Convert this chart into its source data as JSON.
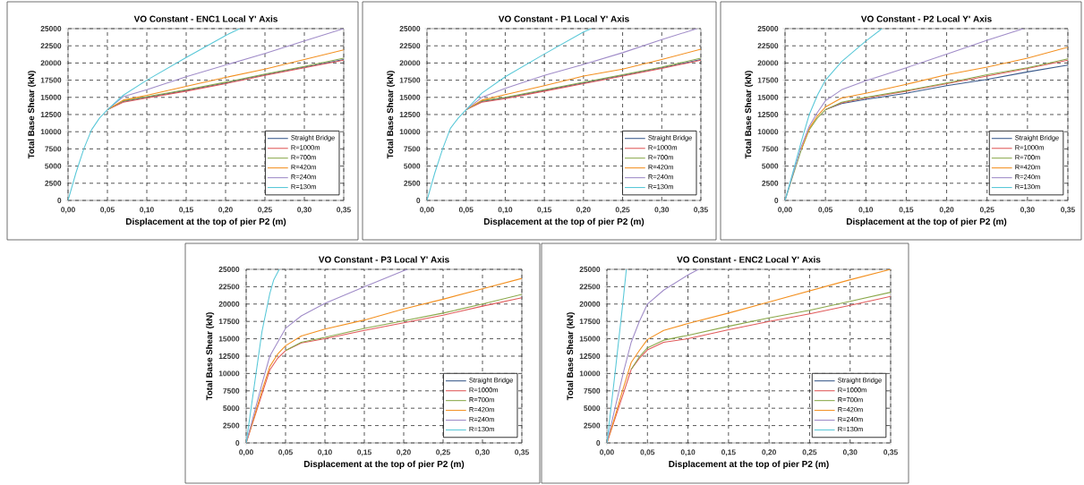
{
  "chart_data": [
    {
      "type": "line",
      "title": "VO Constant - ENC1 Local Y' Axis",
      "xlabel": "Displacement at the top of pier P2 (m)",
      "ylabel": "Total Base Shear (kN)",
      "xlim": [
        0,
        0.35
      ],
      "ylim": [
        0,
        25000
      ],
      "xticks": [
        {
          "value": 0,
          "label": "0,00"
        },
        {
          "value": 0.05,
          "label": "0,05"
        },
        {
          "value": 0.1,
          "label": "0,10"
        },
        {
          "value": 0.15,
          "label": "0,15"
        },
        {
          "value": 0.2,
          "label": "0,20"
        },
        {
          "value": 0.25,
          "label": "0,25"
        },
        {
          "value": 0.3,
          "label": "0,30"
        },
        {
          "value": 0.35,
          "label": "0,35"
        }
      ],
      "yticks": [
        0,
        2500,
        5000,
        7500,
        10000,
        12500,
        15000,
        17500,
        20000,
        22500,
        25000
      ],
      "grid": true,
      "legend": "bottom right",
      "series": [
        {
          "name": "Straight Bridge",
          "color": "#3a5a8c",
          "x": [
            0.05,
            0.07,
            0.1,
            0.15,
            0.2,
            0.25,
            0.3,
            0.35
          ],
          "values": [
            13200,
            14400,
            15000,
            16000,
            17100,
            18300,
            19400,
            20500
          ]
        },
        {
          "name": "R=1000m",
          "color": "#e05a5a",
          "x": [
            0.05,
            0.07,
            0.1,
            0.15,
            0.2,
            0.25,
            0.3,
            0.35
          ],
          "values": [
            13200,
            14300,
            14900,
            15900,
            17000,
            18200,
            19300,
            20400
          ]
        },
        {
          "name": "R=700m",
          "color": "#8aa84a",
          "x": [
            0.05,
            0.07,
            0.1,
            0.15,
            0.2,
            0.25,
            0.3,
            0.35
          ],
          "values": [
            13200,
            14500,
            15100,
            16100,
            17200,
            18400,
            19500,
            20700
          ]
        },
        {
          "name": "R=420m",
          "color": "#f39020",
          "x": [
            0.05,
            0.07,
            0.1,
            0.15,
            0.2,
            0.25,
            0.3,
            0.35
          ],
          "values": [
            13200,
            14600,
            15300,
            16600,
            17900,
            19100,
            20500,
            21900
          ]
        },
        {
          "name": "R=240m",
          "color": "#a08cc8",
          "x": [
            0.05,
            0.07,
            0.1,
            0.15,
            0.2,
            0.25,
            0.3,
            0.35
          ],
          "values": [
            13200,
            15100,
            16100,
            18000,
            19700,
            21400,
            23200,
            25000
          ]
        },
        {
          "name": "R=130m",
          "color": "#5ac8d8",
          "x": [
            0,
            0.01,
            0.02,
            0.03,
            0.04,
            0.05,
            0.07,
            0.1,
            0.15,
            0.2,
            0.218
          ],
          "values": [
            0,
            4000,
            7500,
            10300,
            12000,
            13200,
            15300,
            17500,
            20800,
            24000,
            25000
          ]
        }
      ]
    },
    {
      "type": "line",
      "title": "VO Constant - P1 Local Y' Axis",
      "xlabel": "Displacement at the top of pier P2 (m)",
      "ylabel": "Total Base Shear (kN)",
      "xlim": [
        0,
        0.35
      ],
      "ylim": [
        0,
        25000
      ],
      "xticks": [
        {
          "value": 0,
          "label": "0,00"
        },
        {
          "value": 0.05,
          "label": "0,05"
        },
        {
          "value": 0.1,
          "label": "0,10"
        },
        {
          "value": 0.15,
          "label": "0,15"
        },
        {
          "value": 0.2,
          "label": "0,20"
        },
        {
          "value": 0.25,
          "label": "0,25"
        },
        {
          "value": 0.3,
          "label": "0,30"
        },
        {
          "value": 0.35,
          "label": "0,35"
        }
      ],
      "yticks": [
        0,
        2500,
        5000,
        7500,
        10000,
        12500,
        15000,
        17500,
        20000,
        22500,
        25000
      ],
      "grid": true,
      "legend": "bottom right",
      "series": [
        {
          "name": "Straight Bridge",
          "color": "#3a5a8c",
          "x": [
            0.05,
            0.07,
            0.1,
            0.15,
            0.2,
            0.25,
            0.3,
            0.35
          ],
          "values": [
            13200,
            14400,
            14900,
            16000,
            17100,
            18200,
            19300,
            20500
          ]
        },
        {
          "name": "R=1000m",
          "color": "#e05a5a",
          "x": [
            0.05,
            0.07,
            0.1,
            0.15,
            0.2,
            0.25,
            0.3,
            0.35
          ],
          "values": [
            13200,
            14300,
            14800,
            15900,
            17000,
            18100,
            19200,
            20400
          ]
        },
        {
          "name": "R=700m",
          "color": "#8aa84a",
          "x": [
            0.05,
            0.07,
            0.1,
            0.15,
            0.2,
            0.25,
            0.3,
            0.35
          ],
          "values": [
            13200,
            14500,
            15000,
            16100,
            17200,
            18300,
            19400,
            20700
          ]
        },
        {
          "name": "R=420m",
          "color": "#f39020",
          "x": [
            0.05,
            0.07,
            0.1,
            0.15,
            0.2,
            0.25,
            0.3,
            0.35
          ],
          "values": [
            13200,
            14600,
            15400,
            16700,
            18100,
            19100,
            20500,
            22000
          ]
        },
        {
          "name": "R=240m",
          "color": "#a08cc8",
          "x": [
            0.05,
            0.07,
            0.1,
            0.15,
            0.2,
            0.25,
            0.3,
            0.345
          ],
          "values": [
            13200,
            15000,
            16300,
            18200,
            19800,
            21500,
            23400,
            25000
          ]
        },
        {
          "name": "R=130m",
          "color": "#5ac8d8",
          "x": [
            0,
            0.01,
            0.02,
            0.03,
            0.04,
            0.05,
            0.07,
            0.1,
            0.15,
            0.2,
            0.21
          ],
          "values": [
            0,
            4000,
            7500,
            10500,
            12000,
            13200,
            15600,
            18000,
            21300,
            24500,
            25000
          ]
        }
      ]
    },
    {
      "type": "line",
      "title": "VO Constant - P2 Local Y' Axis",
      "xlabel": "Displacement at the top of pier P2 (m)",
      "ylabel": "Total Base Shear (kN)",
      "xlim": [
        0,
        0.35
      ],
      "ylim": [
        0,
        25000
      ],
      "xticks": [
        {
          "value": 0,
          "label": "0,00"
        },
        {
          "value": 0.05,
          "label": "0,05"
        },
        {
          "value": 0.1,
          "label": "0,10"
        },
        {
          "value": 0.15,
          "label": "0,15"
        },
        {
          "value": 0.2,
          "label": "0,20"
        },
        {
          "value": 0.25,
          "label": "0,25"
        },
        {
          "value": 0.3,
          "label": "0,30"
        },
        {
          "value": 0.35,
          "label": "0,35"
        }
      ],
      "yticks": [
        0,
        2500,
        5000,
        7500,
        10000,
        12500,
        15000,
        17500,
        20000,
        22500,
        25000
      ],
      "grid": true,
      "legend": "bottom right",
      "series": [
        {
          "name": "Straight Bridge",
          "color": "#3a5a8c",
          "x": [
            0.05,
            0.07,
            0.1,
            0.15,
            0.2,
            0.25,
            0.3,
            0.35
          ],
          "values": [
            13200,
            14100,
            14700,
            15600,
            16700,
            17600,
            18700,
            19700
          ]
        },
        {
          "name": "R=1000m",
          "color": "#e05a5a",
          "x": [
            0.05,
            0.07,
            0.1,
            0.15,
            0.2,
            0.25,
            0.3,
            0.35
          ],
          "values": [
            13200,
            14200,
            14900,
            15900,
            17000,
            18100,
            19200,
            20400
          ]
        },
        {
          "name": "R=700m",
          "color": "#8aa84a",
          "x": [
            0,
            0.01,
            0.02,
            0.03,
            0.04,
            0.05,
            0.07,
            0.1,
            0.15,
            0.2,
            0.25,
            0.3,
            0.35
          ],
          "values": [
            0,
            3700,
            7300,
            10300,
            12000,
            13200,
            14300,
            15000,
            16000,
            17100,
            18300,
            19300,
            20600
          ]
        },
        {
          "name": "R=420m",
          "color": "#f39020",
          "x": [
            0.02,
            0.03,
            0.04,
            0.05,
            0.07,
            0.1,
            0.15,
            0.2,
            0.25,
            0.3,
            0.35
          ],
          "values": [
            7400,
            10500,
            12300,
            13600,
            14900,
            15600,
            16900,
            18300,
            19400,
            20700,
            22300
          ]
        },
        {
          "name": "R=240m",
          "color": "#a08cc8",
          "x": [
            0,
            0.01,
            0.02,
            0.03,
            0.04,
            0.05,
            0.07,
            0.1,
            0.15,
            0.2,
            0.25,
            0.295
          ],
          "values": [
            0,
            3900,
            7800,
            10800,
            12800,
            14500,
            16100,
            17400,
            19300,
            21300,
            23300,
            25000
          ]
        },
        {
          "name": "R=130m",
          "color": "#5ac8d8",
          "x": [
            0,
            0.01,
            0.02,
            0.03,
            0.04,
            0.05,
            0.07,
            0.1,
            0.12
          ],
          "values": [
            0,
            4200,
            8500,
            12500,
            15300,
            17500,
            20200,
            23200,
            25000
          ]
        }
      ]
    },
    {
      "type": "line",
      "title": "VO Constant - P3 Local Y' Axis",
      "xlabel": "Displacement at the top of pier P2 (m)",
      "ylabel": "Total Base Shear (kN)",
      "xlim": [
        0,
        0.35
      ],
      "ylim": [
        0,
        25000
      ],
      "xticks": [
        {
          "value": 0,
          "label": "0,00"
        },
        {
          "value": 0.05,
          "label": "0,05"
        },
        {
          "value": 0.1,
          "label": "0,10"
        },
        {
          "value": 0.15,
          "label": "0,15"
        },
        {
          "value": 0.2,
          "label": "0,20"
        },
        {
          "value": 0.25,
          "label": "0,25"
        },
        {
          "value": 0.3,
          "label": "0,30"
        },
        {
          "value": 0.35,
          "label": "0,35"
        }
      ],
      "yticks": [
        0,
        2500,
        5000,
        7500,
        10000,
        12500,
        15000,
        17500,
        20000,
        22500,
        25000
      ],
      "grid": true,
      "legend": "bottom right",
      "series": [
        {
          "name": "Straight Bridge",
          "color": "#3a5a8c"
        },
        {
          "name": "R=1000m",
          "color": "#e05a5a",
          "x": [
            0,
            0.01,
            0.02,
            0.03,
            0.04,
            0.05,
            0.07,
            0.1,
            0.15,
            0.2,
            0.25,
            0.3,
            0.35
          ],
          "values": [
            0,
            3500,
            7000,
            10500,
            12200,
            13300,
            14400,
            15000,
            16200,
            17300,
            18400,
            19700,
            20900
          ]
        },
        {
          "name": "R=700m",
          "color": "#8aa84a",
          "x": [
            0.05,
            0.07,
            0.1,
            0.15,
            0.2,
            0.25,
            0.3,
            0.35
          ],
          "values": [
            13300,
            14500,
            15200,
            16500,
            17600,
            18700,
            20000,
            21400
          ]
        },
        {
          "name": "R=420m",
          "color": "#f39020",
          "x": [
            0,
            0.01,
            0.02,
            0.03,
            0.04,
            0.05,
            0.07,
            0.1,
            0.15,
            0.2,
            0.25,
            0.3,
            0.35
          ],
          "values": [
            0,
            3700,
            7500,
            11000,
            12800,
            14000,
            15400,
            16400,
            17700,
            19300,
            20700,
            22200,
            23700
          ]
        },
        {
          "name": "R=240m",
          "color": "#a08cc8",
          "x": [
            0,
            0.01,
            0.02,
            0.03,
            0.04,
            0.05,
            0.07,
            0.1,
            0.15,
            0.2,
            0.205
          ],
          "values": [
            0,
            4200,
            8500,
            12500,
            14500,
            16500,
            18300,
            20100,
            22500,
            24800,
            25000
          ]
        },
        {
          "name": "R=130m",
          "color": "#5ac8d8",
          "x": [
            0,
            0.01,
            0.02,
            0.03,
            0.035,
            0.042
          ],
          "values": [
            0,
            8000,
            16000,
            21500,
            23500,
            25000
          ]
        }
      ]
    },
    {
      "type": "line",
      "title": "VO Constant - ENC2 Local Y' Axis",
      "xlabel": "Displacement at the top of pier P2 (m)",
      "ylabel": "Total Base Shear (kN)",
      "xlim": [
        0,
        0.35
      ],
      "ylim": [
        0,
        25000
      ],
      "xticks": [
        {
          "value": 0,
          "label": "0,00"
        },
        {
          "value": 0.05,
          "label": "0,05"
        },
        {
          "value": 0.1,
          "label": "0,10"
        },
        {
          "value": 0.15,
          "label": "0,15"
        },
        {
          "value": 0.2,
          "label": "0,20"
        },
        {
          "value": 0.25,
          "label": "0,25"
        },
        {
          "value": 0.3,
          "label": "0,30"
        },
        {
          "value": 0.35,
          "label": "0,35"
        }
      ],
      "yticks": [
        0,
        2500,
        5000,
        7500,
        10000,
        12500,
        15000,
        17500,
        20000,
        22500,
        25000
      ],
      "grid": true,
      "legend": "bottom right",
      "series": [
        {
          "name": "Straight Bridge",
          "color": "#3a5a8c"
        },
        {
          "name": "R=1000m",
          "color": "#e05a5a",
          "x": [
            0,
            0.01,
            0.02,
            0.03,
            0.04,
            0.05,
            0.07,
            0.1,
            0.15,
            0.2,
            0.25,
            0.3,
            0.35
          ],
          "values": [
            0,
            3500,
            7000,
            10600,
            12200,
            13400,
            14500,
            15000,
            16300,
            17500,
            18600,
            19800,
            21100
          ]
        },
        {
          "name": "R=700m",
          "color": "#8aa84a",
          "x": [
            0.03,
            0.04,
            0.05,
            0.07,
            0.1,
            0.15,
            0.2,
            0.25,
            0.3,
            0.35
          ],
          "values": [
            10600,
            12400,
            13700,
            14800,
            15500,
            16800,
            18000,
            19100,
            20400,
            21700
          ]
        },
        {
          "name": "R=420m",
          "color": "#f39020",
          "x": [
            0,
            0.01,
            0.02,
            0.03,
            0.04,
            0.05,
            0.07,
            0.1,
            0.15,
            0.2,
            0.25,
            0.3,
            0.35
          ],
          "values": [
            0,
            3800,
            7800,
            11600,
            13300,
            14900,
            16200,
            17200,
            18700,
            20300,
            21900,
            23500,
            25000
          ]
        },
        {
          "name": "R=240m",
          "color": "#a08cc8",
          "x": [
            0,
            0.01,
            0.02,
            0.03,
            0.04,
            0.05,
            0.07,
            0.1,
            0.113
          ],
          "values": [
            0,
            5000,
            10000,
            14500,
            17500,
            20000,
            22000,
            24200,
            25000
          ]
        },
        {
          "name": "R=130m",
          "color": "#5ac8d8",
          "x": [
            0,
            0.01,
            0.02,
            0.024
          ],
          "values": [
            0,
            10000,
            20500,
            25000
          ]
        }
      ]
    }
  ]
}
